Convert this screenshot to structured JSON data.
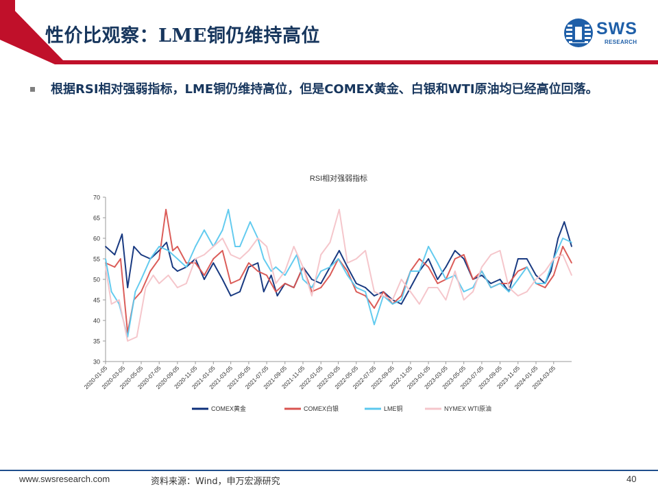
{
  "slide": {
    "title": "性价比观察：LME铜仍维持高位",
    "bullet": "根据RSI相对强弱指标，LME铜仍维持高位，但是COMEX黄金、白银和WTI原油均已经高位回落。"
  },
  "logo": {
    "text": "SWS",
    "sub": "RESEARCH"
  },
  "footer": {
    "url": "www.swsresearch.com",
    "source": "资料来源：Wind，申万宏源研究",
    "page": "40"
  },
  "colors": {
    "accent_red": "#c0102a",
    "brand_blue": "#1f5fa8",
    "title_text": "#17365d"
  },
  "chart_data": {
    "type": "line",
    "title": "RSI相对强弱指标",
    "xlabel": "",
    "ylabel": "",
    "ylim": [
      30,
      70
    ],
    "yticks": [
      30,
      35,
      40,
      45,
      50,
      55,
      60,
      65,
      70
    ],
    "xlim": [
      "2020-01-05",
      "2024-05-05"
    ],
    "x_tick_labels": [
      "2020-01-05",
      "2020-03-05",
      "2020-05-05",
      "2020-07-05",
      "2020-09-05",
      "2020-11-05",
      "2021-01-05",
      "2021-03-05",
      "2021-05-05",
      "2021-07-05",
      "2021-09-05",
      "2021-11-05",
      "2022-01-05",
      "2022-03-05",
      "2022-05-05",
      "2022-07-05",
      "2022-09-05",
      "2022-11-05",
      "2023-01-05",
      "2023-03-05",
      "2023-05-05",
      "2023-07-05",
      "2023-09-05",
      "2023-11-05",
      "2024-01-05",
      "2024-03-05"
    ],
    "grid": false,
    "legend_position": "bottom",
    "series": [
      {
        "name": "COMEX黄金",
        "color": "#0d2f7a",
        "points": [
          [
            "2020-01-05",
            58
          ],
          [
            "2020-02-05",
            56
          ],
          [
            "2020-03-01",
            61
          ],
          [
            "2020-03-20",
            48
          ],
          [
            "2020-04-10",
            58
          ],
          [
            "2020-05-05",
            56
          ],
          [
            "2020-06-05",
            55
          ],
          [
            "2020-07-05",
            57
          ],
          [
            "2020-07-30",
            59
          ],
          [
            "2020-08-20",
            53
          ],
          [
            "2020-09-05",
            52
          ],
          [
            "2020-10-05",
            53
          ],
          [
            "2020-11-05",
            55
          ],
          [
            "2020-12-05",
            50
          ],
          [
            "2021-01-05",
            54
          ],
          [
            "2021-02-05",
            50
          ],
          [
            "2021-03-05",
            46
          ],
          [
            "2021-04-05",
            47
          ],
          [
            "2021-05-05",
            53
          ],
          [
            "2021-06-05",
            54
          ],
          [
            "2021-06-25",
            47
          ],
          [
            "2021-07-20",
            51
          ],
          [
            "2021-08-10",
            46
          ],
          [
            "2021-09-05",
            49
          ],
          [
            "2021-10-05",
            48
          ],
          [
            "2021-11-05",
            53
          ],
          [
            "2021-12-05",
            50
          ],
          [
            "2022-01-05",
            49
          ],
          [
            "2022-02-05",
            53
          ],
          [
            "2022-03-08",
            57
          ],
          [
            "2022-04-05",
            53
          ],
          [
            "2022-05-05",
            49
          ],
          [
            "2022-06-05",
            48
          ],
          [
            "2022-07-05",
            46
          ],
          [
            "2022-08-05",
            47
          ],
          [
            "2022-09-05",
            45
          ],
          [
            "2022-10-05",
            44
          ],
          [
            "2022-11-05",
            48
          ],
          [
            "2022-12-05",
            52
          ],
          [
            "2023-01-05",
            55
          ],
          [
            "2023-02-05",
            50
          ],
          [
            "2023-03-05",
            53
          ],
          [
            "2023-04-05",
            57
          ],
          [
            "2023-05-05",
            55
          ],
          [
            "2023-06-05",
            50
          ],
          [
            "2023-07-05",
            51
          ],
          [
            "2023-08-05",
            49
          ],
          [
            "2023-09-05",
            50
          ],
          [
            "2023-10-05",
            47
          ],
          [
            "2023-11-05",
            55
          ],
          [
            "2023-12-05",
            55
          ],
          [
            "2024-01-05",
            51
          ],
          [
            "2024-02-05",
            49
          ],
          [
            "2024-02-25",
            52
          ],
          [
            "2024-03-20",
            60
          ],
          [
            "2024-04-10",
            64
          ],
          [
            "2024-05-05",
            58
          ]
        ]
      },
      {
        "name": "COMEX白银",
        "color": "#d9534f",
        "points": [
          [
            "2020-01-05",
            54
          ],
          [
            "2020-02-05",
            53
          ],
          [
            "2020-02-25",
            55
          ],
          [
            "2020-03-20",
            37
          ],
          [
            "2020-04-10",
            45
          ],
          [
            "2020-05-05",
            47
          ],
          [
            "2020-06-05",
            52
          ],
          [
            "2020-07-05",
            55
          ],
          [
            "2020-07-28",
            67
          ],
          [
            "2020-08-20",
            57
          ],
          [
            "2020-09-05",
            58
          ],
          [
            "2020-10-05",
            54
          ],
          [
            "2020-11-05",
            54
          ],
          [
            "2020-12-05",
            51
          ],
          [
            "2021-01-05",
            55
          ],
          [
            "2021-02-05",
            57
          ],
          [
            "2021-03-05",
            49
          ],
          [
            "2021-04-05",
            50
          ],
          [
            "2021-05-05",
            54
          ],
          [
            "2021-06-05",
            52
          ],
          [
            "2021-07-05",
            51
          ],
          [
            "2021-08-05",
            47
          ],
          [
            "2021-09-05",
            49
          ],
          [
            "2021-10-05",
            48
          ],
          [
            "2021-11-05",
            53
          ],
          [
            "2021-12-05",
            47
          ],
          [
            "2022-01-05",
            48
          ],
          [
            "2022-02-05",
            51
          ],
          [
            "2022-03-05",
            55
          ],
          [
            "2022-04-05",
            52
          ],
          [
            "2022-05-05",
            47
          ],
          [
            "2022-06-05",
            46
          ],
          [
            "2022-07-05",
            43
          ],
          [
            "2022-08-05",
            47
          ],
          [
            "2022-09-05",
            44
          ],
          [
            "2022-10-05",
            46
          ],
          [
            "2022-11-05",
            52
          ],
          [
            "2022-12-05",
            55
          ],
          [
            "2023-01-05",
            53
          ],
          [
            "2023-02-05",
            49
          ],
          [
            "2023-03-05",
            50
          ],
          [
            "2023-04-05",
            55
          ],
          [
            "2023-05-05",
            56
          ],
          [
            "2023-06-05",
            50
          ],
          [
            "2023-07-05",
            52
          ],
          [
            "2023-08-05",
            48
          ],
          [
            "2023-09-05",
            49
          ],
          [
            "2023-10-05",
            49
          ],
          [
            "2023-11-05",
            52
          ],
          [
            "2023-12-05",
            53
          ],
          [
            "2024-01-05",
            49
          ],
          [
            "2024-02-05",
            48
          ],
          [
            "2024-03-05",
            51
          ],
          [
            "2024-04-05",
            58
          ],
          [
            "2024-05-05",
            54
          ]
        ]
      },
      {
        "name": "LME铜",
        "color": "#5bc8ee",
        "points": [
          [
            "2020-01-05",
            55
          ],
          [
            "2020-01-25",
            47
          ],
          [
            "2020-02-20",
            44
          ],
          [
            "2020-03-20",
            36
          ],
          [
            "2020-04-15",
            47
          ],
          [
            "2020-05-05",
            50
          ],
          [
            "2020-06-05",
            55
          ],
          [
            "2020-07-05",
            58
          ],
          [
            "2020-08-05",
            57
          ],
          [
            "2020-09-05",
            55
          ],
          [
            "2020-10-05",
            53
          ],
          [
            "2020-11-05",
            58
          ],
          [
            "2020-12-05",
            62
          ],
          [
            "2021-01-05",
            58
          ],
          [
            "2021-02-05",
            62
          ],
          [
            "2021-02-25",
            67
          ],
          [
            "2021-03-20",
            58
          ],
          [
            "2021-04-05",
            58
          ],
          [
            "2021-05-10",
            64
          ],
          [
            "2021-06-05",
            60
          ],
          [
            "2021-06-25",
            55
          ],
          [
            "2021-07-20",
            52
          ],
          [
            "2021-08-05",
            53
          ],
          [
            "2021-09-05",
            51
          ],
          [
            "2021-10-15",
            56
          ],
          [
            "2021-11-05",
            50
          ],
          [
            "2021-12-05",
            48
          ],
          [
            "2022-01-05",
            52
          ],
          [
            "2022-02-05",
            53
          ],
          [
            "2022-03-05",
            55
          ],
          [
            "2022-04-05",
            51
          ],
          [
            "2022-05-05",
            48
          ],
          [
            "2022-06-05",
            47
          ],
          [
            "2022-07-05",
            39
          ],
          [
            "2022-08-05",
            46
          ],
          [
            "2022-09-05",
            44
          ],
          [
            "2022-10-05",
            45
          ],
          [
            "2022-11-05",
            52
          ],
          [
            "2022-12-05",
            52
          ],
          [
            "2023-01-05",
            58
          ],
          [
            "2023-02-05",
            54
          ],
          [
            "2023-03-05",
            50
          ],
          [
            "2023-04-05",
            51
          ],
          [
            "2023-05-05",
            47
          ],
          [
            "2023-06-05",
            48
          ],
          [
            "2023-07-05",
            52
          ],
          [
            "2023-08-05",
            48
          ],
          [
            "2023-09-05",
            49
          ],
          [
            "2023-10-05",
            47
          ],
          [
            "2023-11-05",
            50
          ],
          [
            "2023-12-05",
            53
          ],
          [
            "2024-01-05",
            49
          ],
          [
            "2024-02-05",
            49
          ],
          [
            "2024-03-05",
            55
          ],
          [
            "2024-04-05",
            60
          ],
          [
            "2024-05-05",
            59
          ]
        ]
      },
      {
        "name": "NYMEX WTI原油",
        "color": "#f5c6cb",
        "points": [
          [
            "2020-01-05",
            53
          ],
          [
            "2020-01-25",
            44
          ],
          [
            "2020-02-20",
            45
          ],
          [
            "2020-03-20",
            35
          ],
          [
            "2020-04-20",
            36
          ],
          [
            "2020-05-20",
            48
          ],
          [
            "2020-06-15",
            51
          ],
          [
            "2020-07-05",
            49
          ],
          [
            "2020-08-05",
            51
          ],
          [
            "2020-09-05",
            48
          ],
          [
            "2020-10-05",
            49
          ],
          [
            "2020-11-05",
            55
          ],
          [
            "2020-12-05",
            56
          ],
          [
            "2021-01-05",
            58
          ],
          [
            "2021-02-05",
            60
          ],
          [
            "2021-03-05",
            56
          ],
          [
            "2021-04-05",
            55
          ],
          [
            "2021-05-05",
            57
          ],
          [
            "2021-06-05",
            60
          ],
          [
            "2021-07-05",
            58
          ],
          [
            "2021-08-05",
            49
          ],
          [
            "2021-09-05",
            52
          ],
          [
            "2021-10-05",
            58
          ],
          [
            "2021-11-05",
            53
          ],
          [
            "2021-12-05",
            46
          ],
          [
            "2022-01-05",
            56
          ],
          [
            "2022-02-05",
            59
          ],
          [
            "2022-03-08",
            67
          ],
          [
            "2022-04-05",
            54
          ],
          [
            "2022-05-05",
            55
          ],
          [
            "2022-06-05",
            57
          ],
          [
            "2022-07-05",
            47
          ],
          [
            "2022-08-05",
            46
          ],
          [
            "2022-09-05",
            45
          ],
          [
            "2022-10-05",
            50
          ],
          [
            "2022-11-05",
            47
          ],
          [
            "2022-12-05",
            44
          ],
          [
            "2023-01-05",
            48
          ],
          [
            "2023-02-05",
            48
          ],
          [
            "2023-03-05",
            45
          ],
          [
            "2023-04-05",
            52
          ],
          [
            "2023-05-05",
            45
          ],
          [
            "2023-06-05",
            47
          ],
          [
            "2023-07-05",
            53
          ],
          [
            "2023-08-05",
            56
          ],
          [
            "2023-09-05",
            57
          ],
          [
            "2023-10-05",
            48
          ],
          [
            "2023-11-05",
            46
          ],
          [
            "2023-12-05",
            47
          ],
          [
            "2024-01-05",
            50
          ],
          [
            "2024-02-05",
            52
          ],
          [
            "2024-03-05",
            55
          ],
          [
            "2024-04-05",
            56
          ],
          [
            "2024-05-05",
            51
          ]
        ]
      }
    ]
  }
}
